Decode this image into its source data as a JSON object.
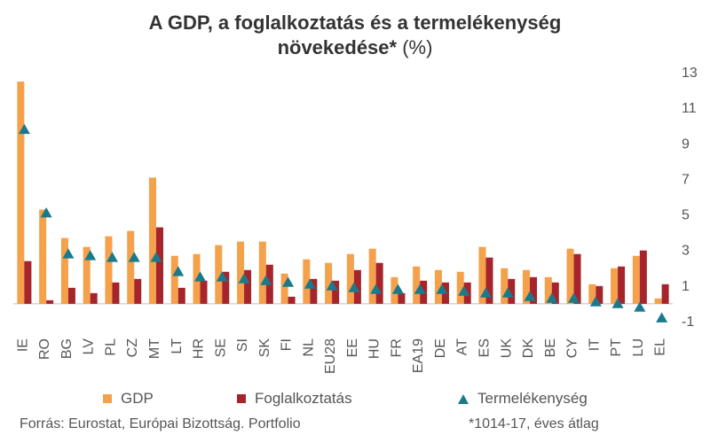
{
  "chart_data": {
    "type": "bar",
    "title_main": "A GDP, a foglalkoztatás és a termelékenység",
    "title_line2_bold": "növekedése*",
    "title_line2_rest": " (%)",
    "categories": [
      "IE",
      "RO",
      "BG",
      "LV",
      "PL",
      "CZ",
      "MT",
      "LT",
      "HR",
      "SE",
      "SI",
      "SK",
      "FI",
      "NL",
      "EU28",
      "EE",
      "HU",
      "FR",
      "EA19",
      "DE",
      "AT",
      "ES",
      "UK",
      "DK",
      "BE",
      "CY",
      "IT",
      "PT",
      "LU",
      "EL"
    ],
    "series": [
      {
        "name": "GDP",
        "kind": "bar",
        "color": "#f5a04a",
        "values": [
          12.5,
          5.3,
          3.7,
          3.2,
          3.8,
          4.1,
          7.1,
          2.7,
          2.8,
          3.3,
          3.5,
          3.5,
          1.7,
          2.5,
          2.3,
          2.8,
          3.1,
          1.5,
          2.1,
          1.9,
          1.8,
          3.2,
          2.0,
          1.9,
          1.5,
          3.1,
          1.1,
          2.0,
          2.7,
          0.3
        ]
      },
      {
        "name": "Foglalkoztatás",
        "kind": "bar",
        "color": "#a6242b",
        "values": [
          2.4,
          0.2,
          0.9,
          0.6,
          1.2,
          1.4,
          4.3,
          0.9,
          1.3,
          1.8,
          1.9,
          2.2,
          0.4,
          1.4,
          1.3,
          1.9,
          2.3,
          0.6,
          1.3,
          1.2,
          1.2,
          2.6,
          1.4,
          1.5,
          1.2,
          2.8,
          1.0,
          2.1,
          3.0,
          1.1
        ]
      },
      {
        "name": "Termelékenység",
        "kind": "marker",
        "color": "#1a7a8c",
        "values": [
          9.8,
          5.1,
          2.8,
          2.7,
          2.6,
          2.6,
          2.6,
          1.8,
          1.5,
          1.5,
          1.4,
          1.3,
          1.2,
          1.1,
          1.0,
          0.9,
          0.8,
          0.8,
          0.8,
          0.8,
          0.7,
          0.6,
          0.6,
          0.4,
          0.3,
          0.3,
          0.1,
          0.0,
          -0.2,
          -0.8
        ]
      }
    ],
    "y_ticks": [
      13,
      11,
      9,
      7,
      5,
      3,
      1,
      -1
    ],
    "ylim": [
      -1.3,
      13.3
    ],
    "legend": {
      "position": "bottom"
    },
    "source": "Forrás: Eurostat, Európai Bizottság. Portfolio",
    "note": "*1014-17, éves átlag"
  }
}
